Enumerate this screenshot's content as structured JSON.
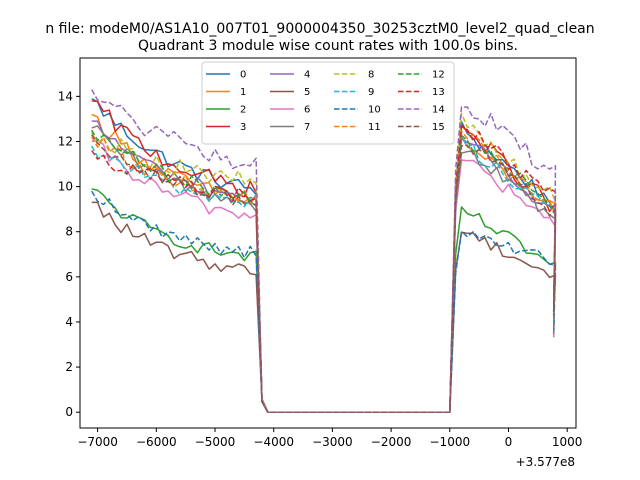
{
  "chart_data": {
    "type": "line",
    "suptitle": "n file: modeM0/AS1A10_007T01_9000004350_30253cztM0_level2_quad_clean",
    "title": "Quadrant 3 module wise count rates with 100.0s bins.",
    "xlabel": "",
    "ylabel": "",
    "x_offset_label": "+3.577e8",
    "xlim": [
      -7300,
      1150
    ],
    "ylim": [
      -0.7,
      15.7
    ],
    "xticks": [
      -7000,
      -6000,
      -5000,
      -4000,
      -3000,
      -2000,
      -1000,
      0,
      1000
    ],
    "xtick_labels": [
      "−7000",
      "−6000",
      "−5000",
      "−4000",
      "−3000",
      "−2000",
      "−1000",
      "0",
      "1000"
    ],
    "yticks": [
      0,
      2,
      4,
      6,
      8,
      10,
      12,
      14
    ],
    "ytick_labels": [
      "0",
      "2",
      "4",
      "6",
      "8",
      "10",
      "12",
      "14"
    ],
    "legend": {
      "position": "top-center",
      "columns": 4
    },
    "time_grid": {
      "seg1_start": -7100,
      "seg1_end": -4300,
      "gap_start": -4200,
      "gap_end": -1000,
      "seg2_start": -900,
      "seg2_end": 750,
      "step": 100
    },
    "series": [
      {
        "name": "0",
        "color": "#1f77b4",
        "dashed": false,
        "start": 13.9,
        "decay": 0.62,
        "floor": 9.0,
        "noise": 0.35,
        "peak": 12.6,
        "end2": 9.2
      },
      {
        "name": "1",
        "color": "#ff7f0e",
        "dashed": false,
        "start": 13.2,
        "decay": 0.65,
        "floor": 8.6,
        "noise": 0.35,
        "peak": 12.0,
        "end2": 8.9
      },
      {
        "name": "2",
        "color": "#2ca02c",
        "dashed": false,
        "start": 9.9,
        "decay": 0.68,
        "floor": 6.3,
        "noise": 0.3,
        "peak": 9.0,
        "end2": 6.4
      },
      {
        "name": "3",
        "color": "#d62728",
        "dashed": false,
        "start": 13.8,
        "decay": 0.6,
        "floor": 8.9,
        "noise": 0.4,
        "peak": 12.7,
        "end2": 9.0
      },
      {
        "name": "4",
        "color": "#9467bd",
        "dashed": false,
        "start": 12.9,
        "decay": 0.62,
        "floor": 8.7,
        "noise": 0.35,
        "peak": 12.2,
        "end2": 8.8
      },
      {
        "name": "5",
        "color": "#8c564b",
        "dashed": false,
        "start": 9.3,
        "decay": 0.72,
        "floor": 5.8,
        "noise": 0.3,
        "peak": 8.1,
        "end2": 6.0
      },
      {
        "name": "6",
        "color": "#e377c2",
        "dashed": false,
        "start": 12.0,
        "decay": 0.64,
        "floor": 8.0,
        "noise": 0.35,
        "peak": 11.4,
        "end2": 8.2
      },
      {
        "name": "7",
        "color": "#7f7f7f",
        "dashed": false,
        "start": 12.6,
        "decay": 0.62,
        "floor": 8.5,
        "noise": 0.35,
        "peak": 11.8,
        "end2": 8.6
      },
      {
        "name": "8",
        "color": "#bcbd22",
        "dashed": true,
        "start": 12.4,
        "decay": 0.55,
        "floor": 9.6,
        "noise": 0.4,
        "peak": 12.9,
        "end2": 9.4
      },
      {
        "name": "9",
        "color": "#17becf",
        "dashed": true,
        "start": 11.8,
        "decay": 0.6,
        "floor": 8.7,
        "noise": 0.35,
        "peak": 12.0,
        "end2": 8.9
      },
      {
        "name": "10",
        "color": "#1f77b4",
        "dashed": true,
        "start": 9.8,
        "decay": 0.68,
        "floor": 6.6,
        "noise": 0.3,
        "peak": 7.9,
        "end2": 6.7
      },
      {
        "name": "11",
        "color": "#ff7f0e",
        "dashed": true,
        "start": 12.2,
        "decay": 0.6,
        "floor": 8.9,
        "noise": 0.35,
        "peak": 12.4,
        "end2": 9.0
      },
      {
        "name": "12",
        "color": "#2ca02c",
        "dashed": true,
        "start": 12.5,
        "decay": 0.6,
        "floor": 8.8,
        "noise": 0.35,
        "peak": 12.3,
        "end2": 9.1
      },
      {
        "name": "13",
        "color": "#d62728",
        "dashed": true,
        "start": 11.6,
        "decay": 0.58,
        "floor": 9.0,
        "noise": 0.4,
        "peak": 12.8,
        "end2": 9.4
      },
      {
        "name": "14",
        "color": "#9467bd",
        "dashed": true,
        "start": 14.3,
        "decay": 0.55,
        "floor": 10.0,
        "noise": 0.45,
        "peak": 13.8,
        "end2": 10.6
      },
      {
        "name": "15",
        "color": "#8c564b",
        "dashed": true,
        "start": 12.3,
        "decay": 0.6,
        "floor": 8.6,
        "noise": 0.35,
        "peak": 12.1,
        "end2": 8.8
      }
    ]
  }
}
